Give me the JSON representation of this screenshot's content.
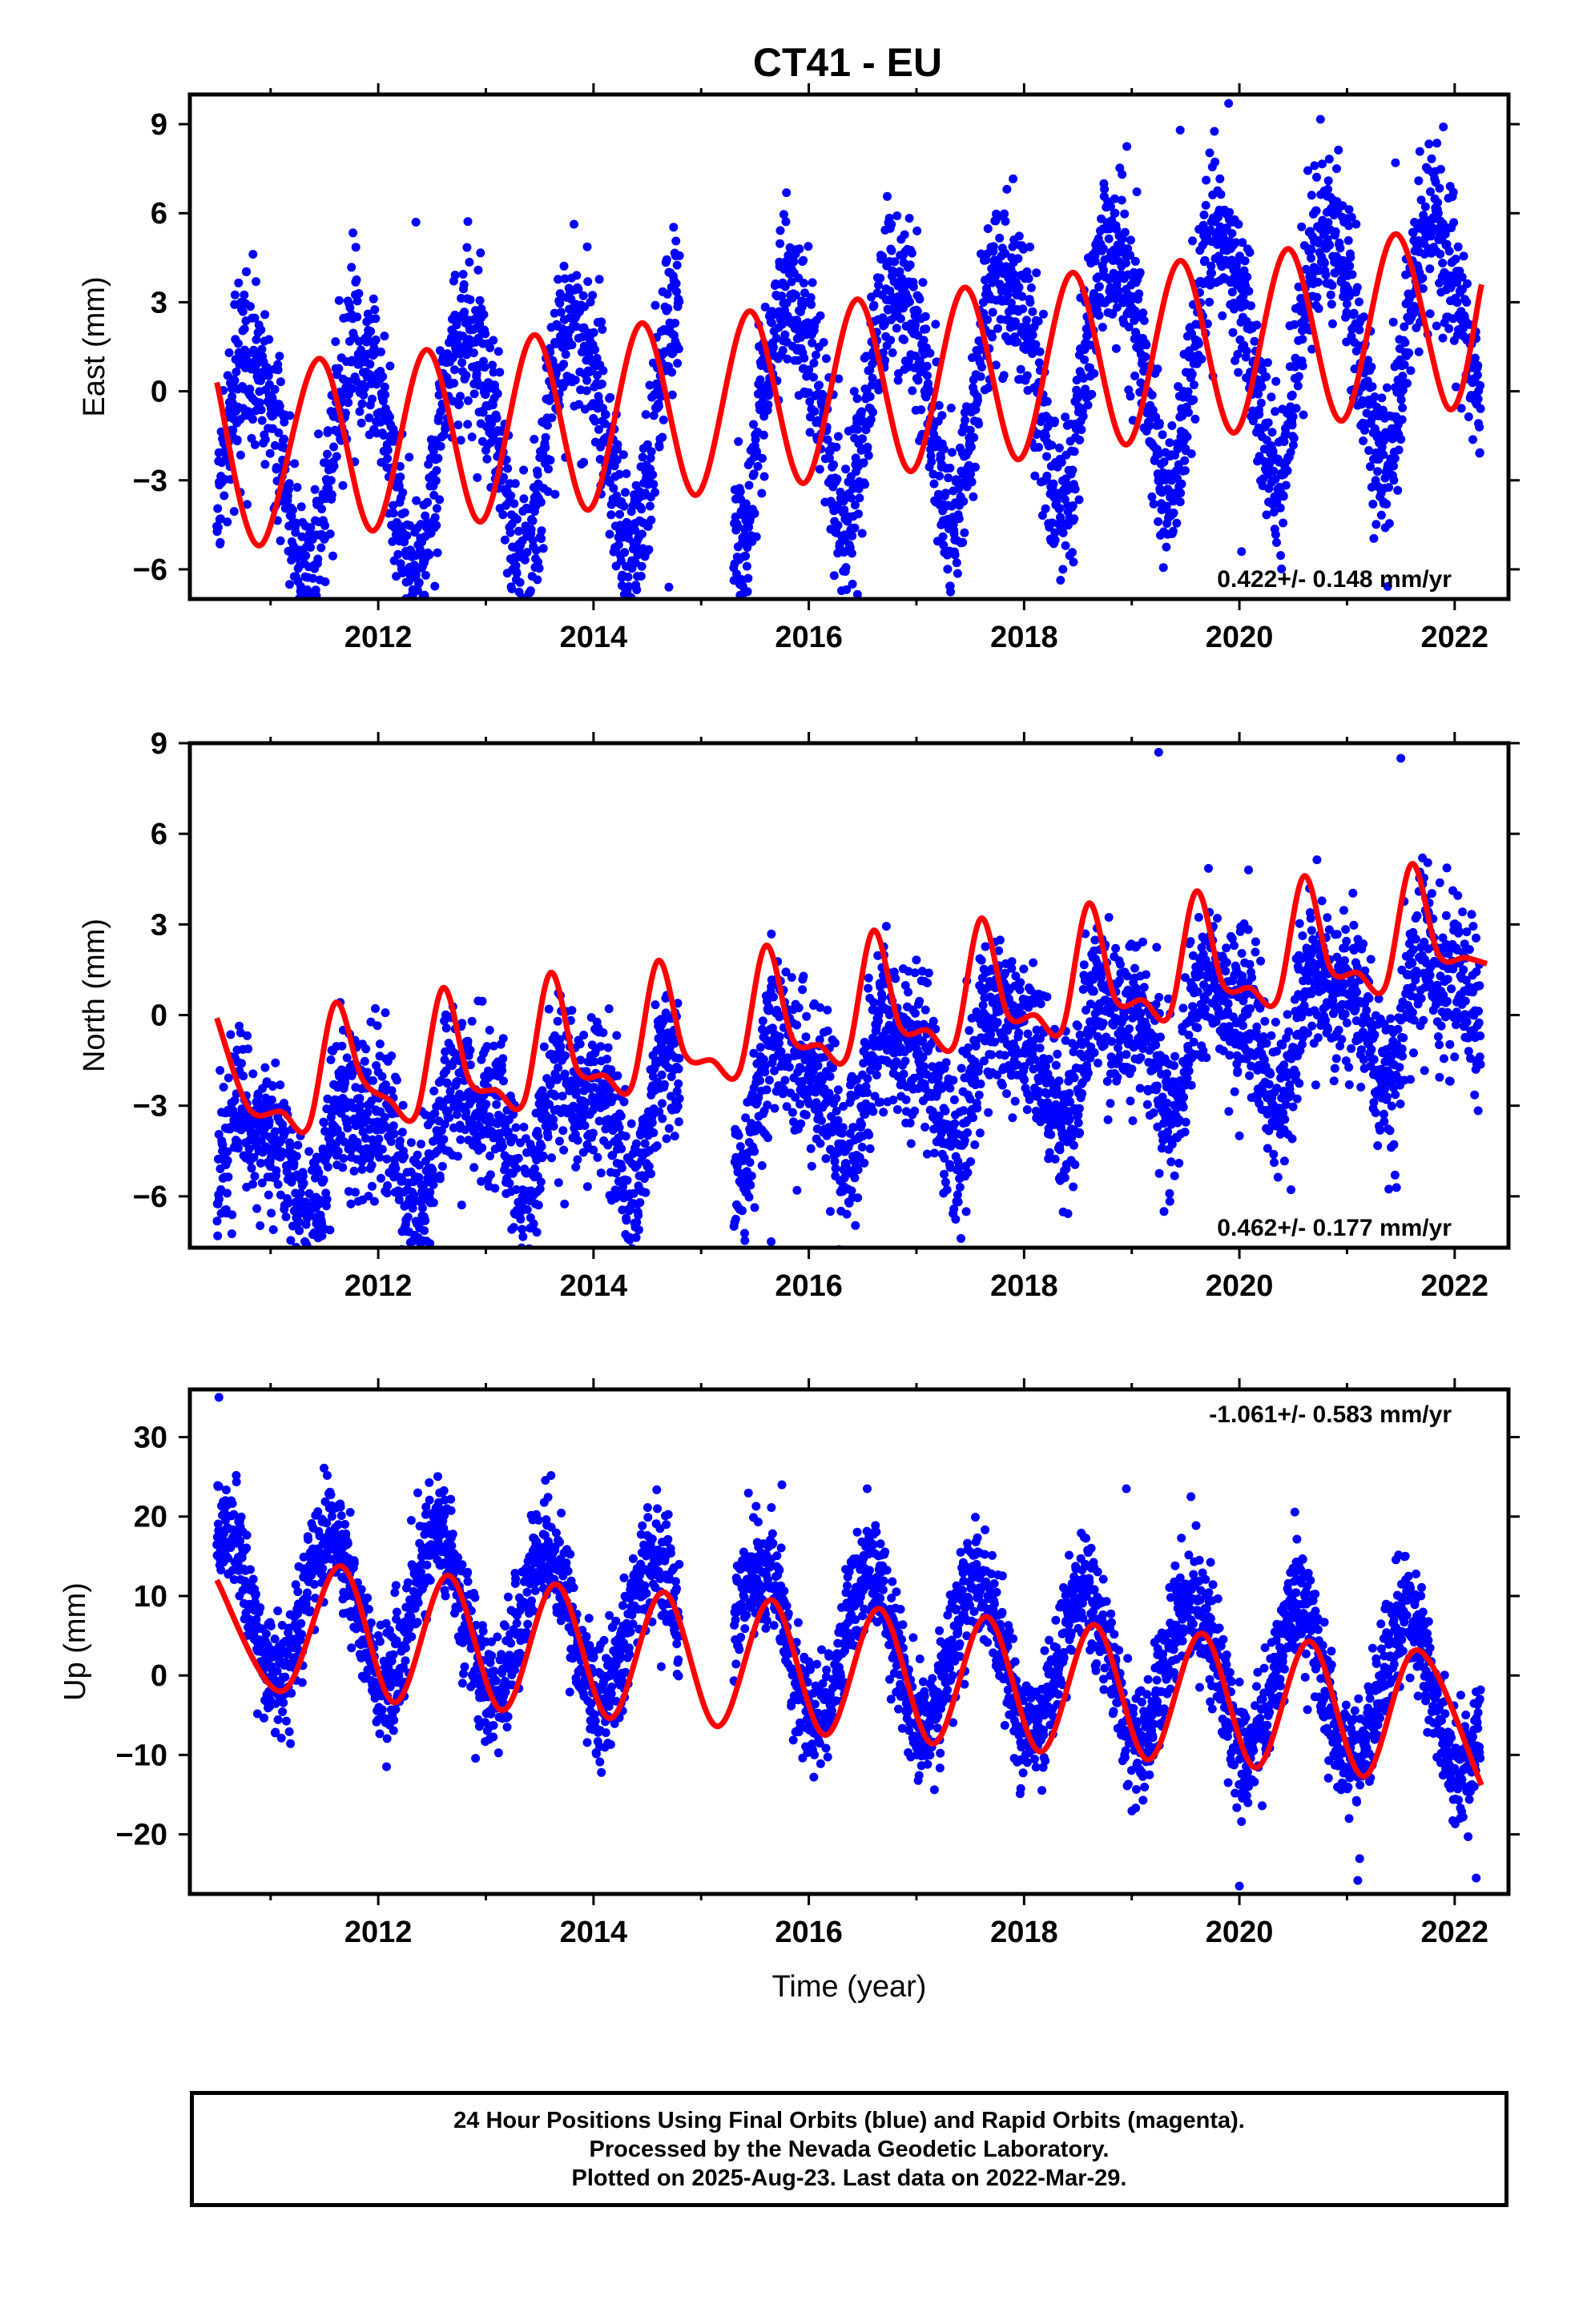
{
  "title": "CT41 - EU",
  "colors": {
    "data": "#0000ff",
    "fit": "#ff0000",
    "frame": "#000000"
  },
  "chart_data": [
    {
      "type": "scatter",
      "component": "East",
      "ylabel": "East (mm)",
      "xlabel": "",
      "xlim": [
        2010.25,
        2022.5
      ],
      "ylim": [
        -7,
        10
      ],
      "yticks": [
        -6,
        -3,
        0,
        3,
        6,
        9
      ],
      "xticks": [
        2012,
        2014,
        2016,
        2018,
        2020,
        2022
      ],
      "rate_label": "0.422+/- 0.148 mm/yr",
      "rate_position": "bottom-right",
      "model": {
        "trend_mm_per_yr": 0.422,
        "offset_mm": -0.3,
        "annual_amp_mm": 4.0,
        "semiannual_amp_mm": 0.6,
        "noise_mm": 1.4
      },
      "fit_points": [
        [
          2010.5,
          0.3
        ],
        [
          2010.9,
          -5.2
        ],
        [
          2011.45,
          1.1
        ],
        [
          2011.95,
          -4.7
        ],
        [
          2012.45,
          1.4
        ],
        [
          2012.95,
          -4.4
        ],
        [
          2013.45,
          1.9
        ],
        [
          2013.95,
          -4.0
        ],
        [
          2014.45,
          2.3
        ],
        [
          2014.95,
          -3.5
        ],
        [
          2015.45,
          2.7
        ],
        [
          2015.95,
          -3.1
        ],
        [
          2016.45,
          3.1
        ],
        [
          2016.95,
          -2.7
        ],
        [
          2017.45,
          3.5
        ],
        [
          2017.95,
          -2.3
        ],
        [
          2018.45,
          4.0
        ],
        [
          2018.95,
          -1.8
        ],
        [
          2019.45,
          4.4
        ],
        [
          2019.95,
          -1.4
        ],
        [
          2020.45,
          4.8
        ],
        [
          2020.95,
          -1.0
        ],
        [
          2021.45,
          5.3
        ],
        [
          2021.95,
          -0.6
        ],
        [
          2022.25,
          3.6
        ]
      ],
      "outliers": [
        [
          2019.9,
          9.7
        ],
        [
          2019.45,
          8.8
        ],
        [
          2020.02,
          -5.4
        ],
        [
          2014.7,
          -6.6
        ],
        [
          2012.35,
          5.7
        ],
        [
          2021.45,
          7.7
        ]
      ]
    },
    {
      "type": "scatter",
      "component": "North",
      "ylabel": "North (mm)",
      "xlabel": "",
      "xlim": [
        2010.25,
        2022.5
      ],
      "ylim": [
        -7.7,
        9
      ],
      "yticks": [
        -6,
        -3,
        0,
        3,
        6,
        9
      ],
      "xticks": [
        2012,
        2014,
        2016,
        2018,
        2020,
        2022
      ],
      "rate_label": "0.462+/- 0.177 mm/yr",
      "rate_position": "bottom-right",
      "model": {
        "trend_mm_per_yr": 0.462,
        "offset_mm": -2.4,
        "annual_amp_mm": 1.8,
        "semiannual_amp_mm": 0.9,
        "noise_mm": 1.3
      },
      "fit_points": [
        [
          2010.5,
          -0.1
        ],
        [
          2010.8,
          -3.1
        ],
        [
          2011.1,
          -3.2
        ],
        [
          2011.35,
          -3.7
        ],
        [
          2011.6,
          0.4
        ],
        [
          2011.85,
          -2.1
        ],
        [
          2012.1,
          -2.8
        ],
        [
          2012.35,
          -3.3
        ],
        [
          2012.6,
          0.9
        ],
        [
          2012.85,
          -2.2
        ],
        [
          2013.1,
          -2.5
        ],
        [
          2013.35,
          -2.9
        ],
        [
          2013.6,
          1.4
        ],
        [
          2013.85,
          -1.8
        ],
        [
          2014.1,
          -2.0
        ],
        [
          2014.35,
          -2.4
        ],
        [
          2014.6,
          1.8
        ],
        [
          2014.85,
          -1.3
        ],
        [
          2015.1,
          -1.5
        ],
        [
          2015.35,
          -1.9
        ],
        [
          2015.6,
          2.3
        ],
        [
          2015.85,
          -0.8
        ],
        [
          2016.1,
          -1.0
        ],
        [
          2016.35,
          -1.4
        ],
        [
          2016.6,
          2.8
        ],
        [
          2016.85,
          -0.4
        ],
        [
          2017.1,
          -0.5
        ],
        [
          2017.35,
          -1.0
        ],
        [
          2017.6,
          3.2
        ],
        [
          2017.85,
          0.0
        ],
        [
          2018.1,
          0.0
        ],
        [
          2018.35,
          -0.5
        ],
        [
          2018.6,
          3.7
        ],
        [
          2018.85,
          0.5
        ],
        [
          2019.1,
          0.5
        ],
        [
          2019.35,
          0.0
        ],
        [
          2019.6,
          4.1
        ],
        [
          2019.85,
          1.0
        ],
        [
          2020.1,
          0.9
        ],
        [
          2020.35,
          0.5
        ],
        [
          2020.6,
          4.6
        ],
        [
          2020.85,
          1.5
        ],
        [
          2021.1,
          1.4
        ],
        [
          2021.35,
          0.9
        ],
        [
          2021.6,
          5.0
        ],
        [
          2021.85,
          2.0
        ],
        [
          2022.1,
          1.9
        ],
        [
          2022.3,
          1.7
        ]
      ],
      "outliers": [
        [
          2015.65,
          -7.5
        ],
        [
          2016.2,
          -6.5
        ],
        [
          2020.0,
          -4.0
        ],
        [
          2019.25,
          8.7
        ],
        [
          2021.5,
          8.5
        ],
        [
          2017.1,
          -4.6
        ]
      ]
    },
    {
      "type": "scatter",
      "component": "Up",
      "ylabel": "Up (mm)",
      "xlabel": "Time (year)",
      "xlim": [
        2010.25,
        2022.5
      ],
      "ylim": [
        -27.5,
        36
      ],
      "yticks": [
        -20,
        -10,
        0,
        10,
        20,
        30
      ],
      "xticks": [
        2012,
        2014,
        2016,
        2018,
        2020,
        2022
      ],
      "rate_label": "-1.061+/- 0.583 mm/yr",
      "rate_position": "top-right",
      "model": {
        "trend_mm_per_yr": -1.061,
        "offset_mm": 4.0,
        "annual_amp_mm": 9.5,
        "semiannual_amp_mm": 0.0,
        "noise_mm": 3.6
      },
      "fit_points": [
        [
          2010.5,
          12.0
        ],
        [
          2011.1,
          -2.0
        ],
        [
          2011.65,
          13.8
        ],
        [
          2012.15,
          -3.4
        ],
        [
          2012.65,
          12.6
        ],
        [
          2013.15,
          -4.4
        ],
        [
          2013.65,
          11.5
        ],
        [
          2014.15,
          -5.4
        ],
        [
          2014.65,
          10.5
        ],
        [
          2015.15,
          -6.4
        ],
        [
          2015.65,
          9.5
        ],
        [
          2016.15,
          -7.5
        ],
        [
          2016.65,
          8.4
        ],
        [
          2017.15,
          -8.6
        ],
        [
          2017.65,
          7.4
        ],
        [
          2018.15,
          -9.6
        ],
        [
          2018.65,
          6.4
        ],
        [
          2019.15,
          -10.6
        ],
        [
          2019.65,
          5.3
        ],
        [
          2020.15,
          -11.6
        ],
        [
          2020.65,
          4.3
        ],
        [
          2021.15,
          -12.7
        ],
        [
          2021.65,
          3.2
        ],
        [
          2022.25,
          -13.8
        ]
      ],
      "outliers": [
        [
          2010.52,
          35.0
        ],
        [
          2015.75,
          24.0
        ],
        [
          2018.95,
          23.5
        ],
        [
          2019.55,
          22.5
        ],
        [
          2020.0,
          -26.5
        ],
        [
          2021.1,
          -25.8
        ],
        [
          2022.2,
          -25.5
        ]
      ]
    }
  ],
  "footer": {
    "line1": "24 Hour Positions Using Final Orbits (blue) and Rapid Orbits (magenta).",
    "line2": "Processed by the Nevada Geodetic Laboratory.",
    "line3": "Plotted on 2025-Aug-23. Last data on 2022-Mar-29."
  }
}
